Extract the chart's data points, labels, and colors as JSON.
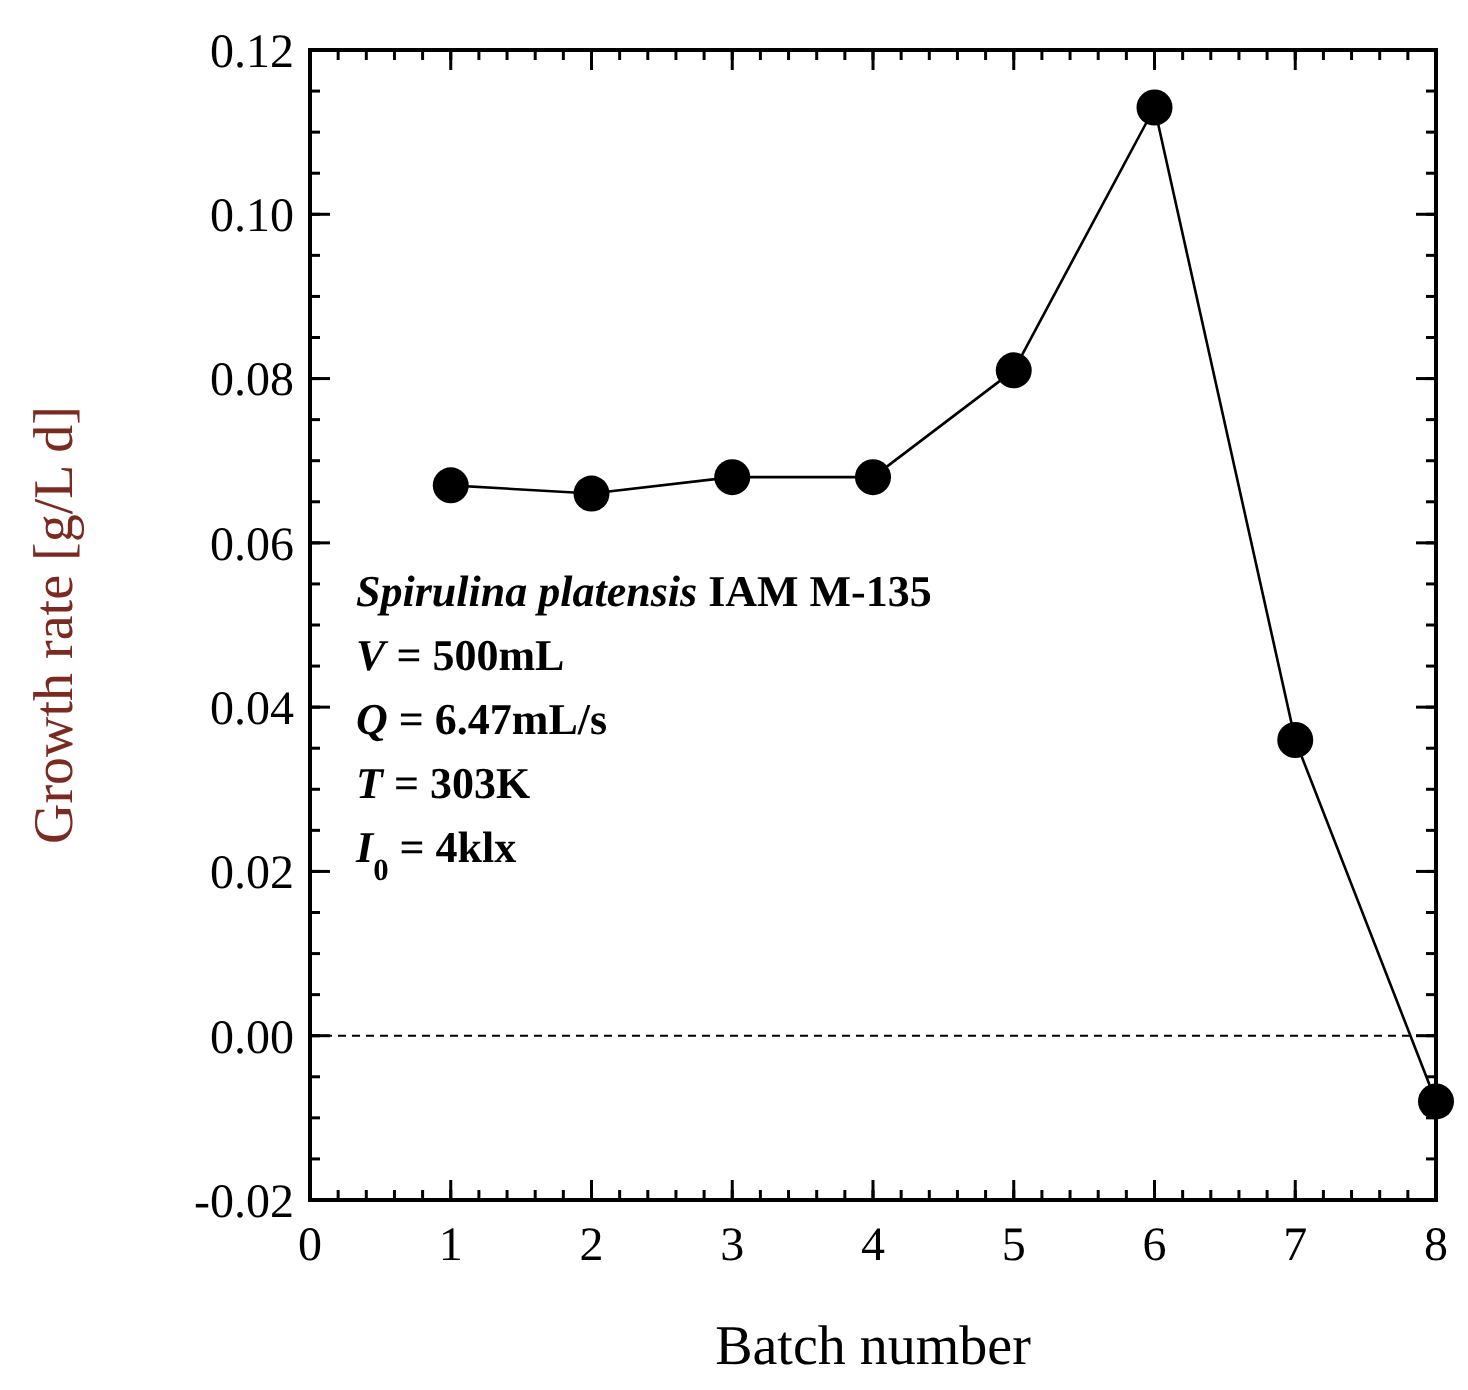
{
  "chart_data": {
    "type": "line",
    "xlabel": "Batch number",
    "ylabel": "Growth rate [g/L d]",
    "x": [
      1,
      2,
      3,
      4,
      5,
      6,
      7,
      8
    ],
    "series": [
      {
        "color": "#000000",
        "values": [
          0.067,
          0.066,
          0.068,
          0.068,
          0.081,
          0.113,
          0.036,
          -0.008
        ]
      }
    ],
    "xlim": [
      0,
      8
    ],
    "xticks": [
      0,
      1,
      2,
      3,
      4,
      5,
      6,
      7,
      8
    ],
    "ylim": [
      -0.02,
      0.12
    ],
    "yticks": [
      {
        "value": -0.02,
        "label": "-0.02"
      },
      {
        "value": 0,
        "label": "0.00"
      },
      {
        "value": 0.02,
        "label": "0.02"
      },
      {
        "value": 0.04,
        "label": "0.04"
      },
      {
        "value": 0.06,
        "label": "0.06"
      },
      {
        "value": 0.08,
        "label": "0.08"
      },
      {
        "value": 0.1,
        "label": "0.10"
      },
      {
        "value": 0.12,
        "label": "0.12"
      }
    ],
    "marker": "circle",
    "line_style": "solid",
    "grid": false,
    "ref_lines": [
      {
        "axis": "y",
        "value": 0,
        "line_style": "dashed",
        "color": "#000000"
      }
    ],
    "annotations": [
      {
        "text": "Spirulina platensis IAM M-135"
      },
      {
        "text": "V = 500mL"
      },
      {
        "text": "Q = 6.47mL/s"
      },
      {
        "text": "T = 303K"
      },
      {
        "text": "I$_{0}$ = 4klx"
      }
    ]
  }
}
